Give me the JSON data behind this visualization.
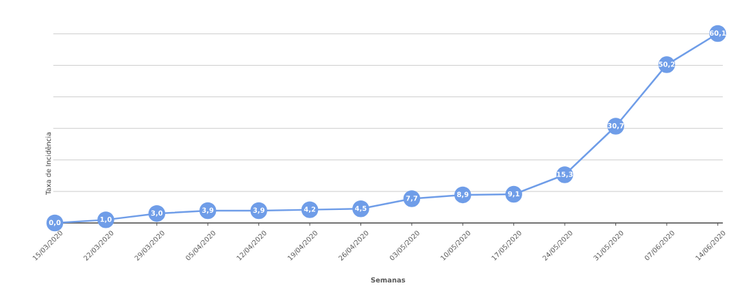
{
  "chart_data": {
    "type": "line",
    "xlabel": "Semanas",
    "ylabel": "Taxa de Incidência",
    "categories": [
      "15/03/2020",
      "22/03/2020",
      "29/03/2020",
      "05/04/2020",
      "12/04/2020",
      "19/04/2020",
      "26/04/2020",
      "03/05/2020",
      "10/05/2020",
      "17/05/2020",
      "24/05/2020",
      "31/05/2020",
      "07/06/2020",
      "14/06/2020"
    ],
    "values": [
      0.0,
      1.0,
      3.0,
      3.9,
      3.9,
      4.2,
      4.5,
      7.7,
      8.9,
      9.1,
      15.3,
      30.7,
      50.2,
      60.1
    ],
    "value_labels": [
      "0,0",
      "1,0",
      "3,0",
      "3,9",
      "3,9",
      "4,2",
      "4,5",
      "7,7",
      "8,9",
      "9,1",
      "15,3",
      "30,7",
      "50,2",
      "60,1"
    ],
    "color": "#6f9de8",
    "marker": "circle",
    "line_style": "solid",
    "grid": "y",
    "tick_labels": "x"
  }
}
